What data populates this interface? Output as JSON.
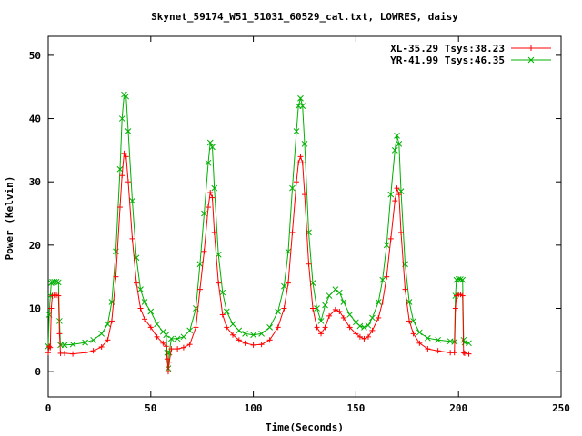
{
  "chart_data": {
    "type": "line",
    "title": "Skynet_59174_W51_51031_60529_cal.txt, LOWRES, daisy",
    "xlabel": "Time(Seconds)",
    "ylabel": "Power (Kelvin)",
    "xlim": [
      0,
      250
    ],
    "ylim": [
      -4,
      53
    ],
    "xticks": [
      0,
      50,
      100,
      150,
      200,
      250
    ],
    "yticks": [
      0,
      10,
      20,
      30,
      40,
      50
    ],
    "grid": false,
    "legend_position": "top-right",
    "series": [
      {
        "name": "XL-35.29 Tsys:38.23",
        "color": "#ff0000",
        "marker": "plus",
        "points": [
          [
            0,
            3
          ],
          [
            0.5,
            4
          ],
          [
            1,
            3.8
          ],
          [
            1.5,
            10
          ],
          [
            2,
            12
          ],
          [
            3,
            12.1
          ],
          [
            4,
            12.1
          ],
          [
            5,
            12
          ],
          [
            5.5,
            6
          ],
          [
            6,
            2.9
          ],
          [
            8,
            2.9
          ],
          [
            12,
            2.8
          ],
          [
            18,
            3
          ],
          [
            22,
            3.3
          ],
          [
            26,
            3.9
          ],
          [
            29,
            5
          ],
          [
            31,
            8
          ],
          [
            33,
            15
          ],
          [
            35,
            26
          ],
          [
            36,
            31
          ],
          [
            37,
            34.5
          ],
          [
            38,
            34
          ],
          [
            39,
            30
          ],
          [
            41,
            21
          ],
          [
            43,
            14
          ],
          [
            45,
            10
          ],
          [
            47,
            8.3
          ],
          [
            50,
            7
          ],
          [
            53,
            5.5
          ],
          [
            56,
            4.5
          ],
          [
            57.5,
            4
          ],
          [
            58,
            2
          ],
          [
            58.5,
            0
          ],
          [
            59,
            1.5
          ],
          [
            60,
            3.6
          ],
          [
            63,
            3.6
          ],
          [
            66,
            3.8
          ],
          [
            69,
            4.3
          ],
          [
            72,
            7
          ],
          [
            74,
            13
          ],
          [
            76,
            19
          ],
          [
            78,
            26
          ],
          [
            79,
            28.3
          ],
          [
            80,
            27.5
          ],
          [
            81,
            22
          ],
          [
            83,
            14
          ],
          [
            85,
            9
          ],
          [
            87,
            7
          ],
          [
            90,
            5.8
          ],
          [
            93,
            5
          ],
          [
            96,
            4.5
          ],
          [
            100,
            4.2
          ],
          [
            104,
            4.3
          ],
          [
            108,
            5
          ],
          [
            112,
            7
          ],
          [
            115,
            10
          ],
          [
            117,
            14
          ],
          [
            119,
            22
          ],
          [
            121,
            30
          ],
          [
            122,
            33
          ],
          [
            123,
            34
          ],
          [
            124,
            33
          ],
          [
            125,
            28
          ],
          [
            127,
            17
          ],
          [
            129,
            10
          ],
          [
            131,
            7
          ],
          [
            133,
            6
          ],
          [
            135,
            7
          ],
          [
            137,
            8.8
          ],
          [
            140,
            9.8
          ],
          [
            142,
            9.5
          ],
          [
            144,
            8.5
          ],
          [
            147,
            7
          ],
          [
            150,
            6
          ],
          [
            152,
            5.5
          ],
          [
            154,
            5.2
          ],
          [
            156,
            5.5
          ],
          [
            158,
            6.5
          ],
          [
            161,
            8.5
          ],
          [
            163,
            11
          ],
          [
            165,
            15
          ],
          [
            167,
            21
          ],
          [
            169,
            27
          ],
          [
            170,
            29
          ],
          [
            171,
            28
          ],
          [
            172,
            22
          ],
          [
            174,
            13
          ],
          [
            176,
            8
          ],
          [
            178,
            6
          ],
          [
            181,
            4.5
          ],
          [
            185,
            3.6
          ],
          [
            190,
            3.3
          ],
          [
            196,
            3
          ],
          [
            198,
            3
          ],
          [
            198.5,
            10
          ],
          [
            199,
            12
          ],
          [
            200,
            12.2
          ],
          [
            201,
            12.2
          ],
          [
            202,
            12
          ],
          [
            202.5,
            3
          ],
          [
            203,
            2.9
          ],
          [
            205,
            2.8
          ]
        ]
      },
      {
        "name": "YR-41.99 Tsys:46.35",
        "color": "#00b000",
        "marker": "x",
        "points": [
          [
            0,
            4
          ],
          [
            0.5,
            9
          ],
          [
            1,
            12
          ],
          [
            1.5,
            14
          ],
          [
            2,
            14.2
          ],
          [
            3,
            14.2
          ],
          [
            4,
            14.2
          ],
          [
            5,
            14.1
          ],
          [
            5.5,
            8
          ],
          [
            6,
            4.2
          ],
          [
            8,
            4.2
          ],
          [
            12,
            4.3
          ],
          [
            18,
            4.6
          ],
          [
            22,
            5
          ],
          [
            26,
            6
          ],
          [
            29,
            7.5
          ],
          [
            31,
            11
          ],
          [
            33,
            19
          ],
          [
            35,
            32
          ],
          [
            36,
            40
          ],
          [
            37,
            43.8
          ],
          [
            38,
            43.5
          ],
          [
            39,
            38
          ],
          [
            41,
            27
          ],
          [
            43,
            18
          ],
          [
            45,
            13
          ],
          [
            47,
            11
          ],
          [
            50,
            9.5
          ],
          [
            53,
            7.5
          ],
          [
            56,
            6.3
          ],
          [
            57.5,
            5.8
          ],
          [
            58,
            3
          ],
          [
            58.5,
            0.5
          ],
          [
            59,
            3
          ],
          [
            60,
            5.2
          ],
          [
            63,
            5.2
          ],
          [
            66,
            5.5
          ],
          [
            69,
            6.5
          ],
          [
            72,
            10
          ],
          [
            74,
            17
          ],
          [
            76,
            25
          ],
          [
            78,
            33
          ],
          [
            79,
            36.2
          ],
          [
            80,
            35.5
          ],
          [
            81,
            29
          ],
          [
            83,
            18.5
          ],
          [
            85,
            12.5
          ],
          [
            87,
            9.5
          ],
          [
            90,
            7.5
          ],
          [
            93,
            6.5
          ],
          [
            96,
            6
          ],
          [
            100,
            5.8
          ],
          [
            104,
            6
          ],
          [
            108,
            7
          ],
          [
            112,
            9.5
          ],
          [
            115,
            13.5
          ],
          [
            117,
            19
          ],
          [
            119,
            29
          ],
          [
            121,
            38
          ],
          [
            122,
            42
          ],
          [
            123,
            43.2
          ],
          [
            124,
            42
          ],
          [
            125,
            36
          ],
          [
            127,
            22
          ],
          [
            129,
            14
          ],
          [
            131,
            10
          ],
          [
            133,
            8
          ],
          [
            135,
            10.5
          ],
          [
            137,
            12
          ],
          [
            140,
            13
          ],
          [
            142,
            12.5
          ],
          [
            144,
            11
          ],
          [
            147,
            9
          ],
          [
            150,
            7.8
          ],
          [
            152,
            7.2
          ],
          [
            154,
            7
          ],
          [
            156,
            7.3
          ],
          [
            158,
            8.5
          ],
          [
            161,
            11
          ],
          [
            163,
            14.5
          ],
          [
            165,
            20
          ],
          [
            167,
            28
          ],
          [
            169,
            35
          ],
          [
            170,
            37.3
          ],
          [
            171,
            36
          ],
          [
            172,
            28.5
          ],
          [
            174,
            17
          ],
          [
            176,
            11
          ],
          [
            178,
            8
          ],
          [
            181,
            6.2
          ],
          [
            185,
            5.3
          ],
          [
            190,
            5
          ],
          [
            196,
            4.8
          ],
          [
            198,
            4.7
          ],
          [
            198.5,
            12
          ],
          [
            199,
            14.5
          ],
          [
            200,
            14.6
          ],
          [
            201,
            14.6
          ],
          [
            202,
            14.5
          ],
          [
            202.5,
            5
          ],
          [
            203,
            4.6
          ],
          [
            205,
            4.5
          ]
        ]
      }
    ]
  }
}
